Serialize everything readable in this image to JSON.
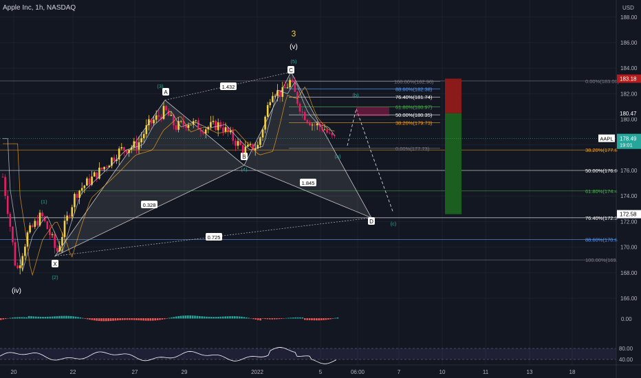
{
  "header": {
    "title": "Apple Inc, 1h, NASDAQ",
    "currency": "USD"
  },
  "chart_data": {
    "type": "candlestick",
    "symbol": "AAPL",
    "ylim": [
      165,
      188.5
    ],
    "y_ticks": [
      166,
      168,
      170,
      172,
      174,
      176,
      178,
      180,
      182,
      184,
      186,
      188
    ],
    "y_tick_labels": [
      "166.00",
      "168.00",
      "170.00",
      "172.00",
      "174.00",
      "176.00",
      "178.00",
      "180.00",
      "182.00",
      "184.00",
      "186.00",
      "188.00"
    ],
    "x_tick_labels": [
      "20",
      "22",
      "27",
      "29",
      "2022",
      "5",
      "06:00",
      "7",
      "10",
      "11",
      "13",
      "18"
    ],
    "last_price": {
      "label": "AAPL",
      "value": 178.49,
      "text": "178.49",
      "countdown": "19:01",
      "color": "#26a69a"
    },
    "price_badges": [
      {
        "value": 183.18,
        "text": "183.18",
        "bg": "#b71c1c",
        "fg": "#ffffff"
      },
      {
        "value": 180.47,
        "text": "180.47",
        "bg": "#131722",
        "fg": "#ffffff"
      },
      {
        "value": 172.58,
        "text": "172.58",
        "bg": "#ffffff",
        "fg": "#000000"
      }
    ],
    "fib_right": [
      {
        "value": 183.0,
        "text": "0.00%(183.00)",
        "color": "#787b86"
      },
      {
        "value": 177.6,
        "text": "38.20%(177.6",
        "color": "#f7a21b"
      },
      {
        "value": 176.0,
        "text": "50.00%(176.0",
        "color": "#ffffff"
      },
      {
        "value": 174.4,
        "text": "61.80%(174.4",
        "color": "#4caf50"
      },
      {
        "value": 172.3,
        "text": "76.40%(172.3",
        "color": "#ffffff"
      },
      {
        "value": 170.6,
        "text": "88.60%(170.6",
        "color": "#5b9cf6"
      },
      {
        "value": 169.0,
        "text": "100.00%(169.",
        "color": "#787b86"
      }
    ],
    "fib_mid": [
      {
        "value": 182.96,
        "text": "100.00%(182.96)",
        "color": "#787b86"
      },
      {
        "value": 182.38,
        "text": "88.60%(182.38)",
        "color": "#5b9cf6"
      },
      {
        "value": 181.74,
        "text": "76.40%(181.74)",
        "color": "#ffffff"
      },
      {
        "value": 180.97,
        "text": "61.80%(180.97)",
        "color": "#4caf50"
      },
      {
        "value": 180.35,
        "text": "50.00%(180.35)",
        "color": "#ffffff"
      },
      {
        "value": 179.73,
        "text": "38.20%(179.73)",
        "color": "#f7a21b"
      },
      {
        "value": 177.73,
        "text": "0.00%(177.73)",
        "color": "#787b86"
      }
    ],
    "wave_labels": [
      {
        "text": "3",
        "color": "#f5d142"
      },
      {
        "text": "(v)",
        "color": "#ffffff"
      },
      {
        "text": "(iv)",
        "color": "#ffffff"
      },
      {
        "text": "(1)",
        "color": "#26a69a"
      },
      {
        "text": "(2)",
        "color": "#26a69a"
      },
      {
        "text": "(3)",
        "color": "#26a69a"
      },
      {
        "text": "(4)",
        "color": "#26a69a"
      },
      {
        "text": "(5)",
        "color": "#26a69a"
      },
      {
        "text": "(a)",
        "color": "#26a69a"
      },
      {
        "text": "(b)",
        "color": "#26a69a"
      },
      {
        "text": "(c)",
        "color": "#26a69a"
      }
    ],
    "pattern_points": [
      "X",
      "A",
      "B",
      "C",
      "D"
    ],
    "ratios": [
      "1.432",
      "0.328",
      "1.845",
      "0.725"
    ],
    "oscillator": {
      "type": "histogram"
    },
    "rsi": {
      "ticks": [
        "80.00",
        "40.00"
      ],
      "high": 80,
      "low": 40,
      "ylim": [
        30,
        100
      ]
    }
  }
}
